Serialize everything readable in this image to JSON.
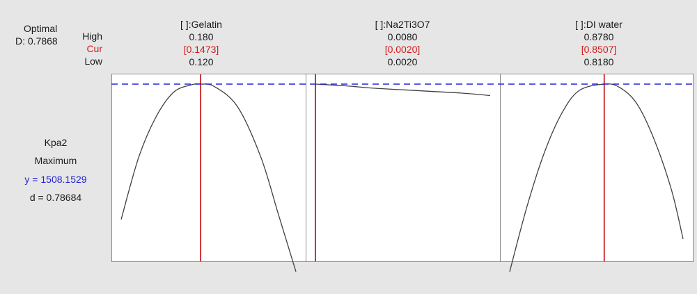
{
  "header": {
    "optimal_label": "Optimal",
    "d_label": "D: 0.7868",
    "high_label": "High",
    "cur_label": "Cur",
    "low_label": "Low"
  },
  "response": {
    "name": "Kpa2",
    "goal": "Maximum",
    "y_text": "y = 1508.1529",
    "d_text": "d = 0.78684"
  },
  "colors": {
    "background": "#e6e6e6",
    "cur_line": "#c00000",
    "target_line": "#2323d6",
    "curve": "#404040",
    "cur_text": "#d11a1a",
    "y_text": "#2323d6"
  },
  "chart_data": {
    "type": "line",
    "y_value": 1508.1529,
    "factors": [
      {
        "name": "[ ]:Gelatin",
        "high": "0.180",
        "cur": "[0.1473]",
        "low": "0.120",
        "low_value": 0.12,
        "high_value": 0.18,
        "cur_value": 0.1473,
        "curve": {
          "x": [
            0.12,
            0.126,
            0.132,
            0.138,
            0.144,
            0.1473,
            0.152,
            0.16,
            0.168,
            0.174,
            0.18
          ],
          "y": [
            0.17,
            0.55,
            0.8,
            0.95,
            0.995,
            1.0,
            0.985,
            0.86,
            0.55,
            0.2,
            -0.15
          ]
        }
      },
      {
        "name": "[ ]:Na2Ti3O7",
        "high": "0.0080",
        "cur": "[0.0020]",
        "low": "0.0020",
        "low_value": 0.002,
        "high_value": 0.008,
        "cur_value": 0.002,
        "curve": {
          "x": [
            0.002,
            0.003,
            0.004,
            0.005,
            0.006,
            0.007,
            0.008
          ],
          "y": [
            1.0,
            0.99,
            0.975,
            0.965,
            0.955,
            0.945,
            0.93
          ]
        }
      },
      {
        "name": "[ ]:DI water",
        "high": "0.8780",
        "cur": "[0.8507]",
        "low": "0.8180",
        "low_value": 0.818,
        "high_value": 0.878,
        "cur_value": 0.8507,
        "curve": {
          "x": [
            0.818,
            0.824,
            0.83,
            0.836,
            0.842,
            0.8507,
            0.856,
            0.862,
            0.868,
            0.874,
            0.878
          ],
          "y": [
            -0.15,
            0.25,
            0.58,
            0.82,
            0.96,
            1.0,
            0.98,
            0.88,
            0.66,
            0.35,
            0.05
          ]
        }
      }
    ]
  }
}
